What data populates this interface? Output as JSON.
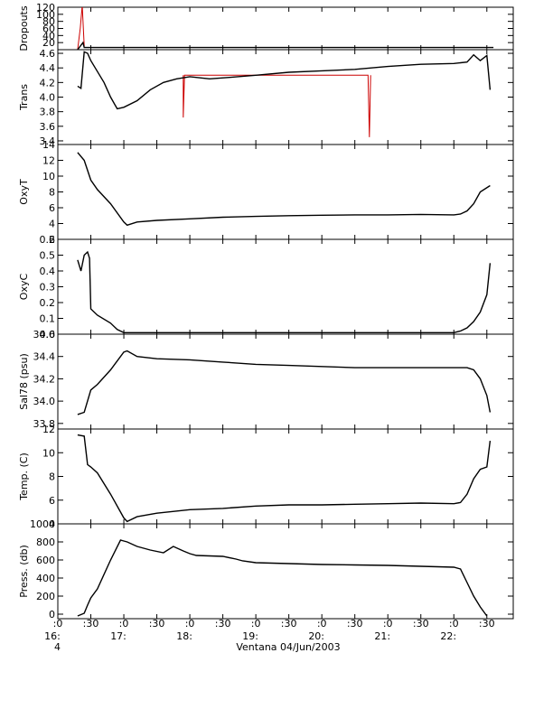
{
  "figure": {
    "corner_label": "4",
    "x_title": "Ventana 04/Jun/2003",
    "x_axis": {
      "range": [
        16.0,
        22.9
      ],
      "ticks": [
        16.0,
        16.5,
        17.0,
        17.5,
        18.0,
        18.5,
        19.0,
        19.5,
        20.0,
        20.5,
        21.0,
        21.5,
        22.0,
        22.5
      ],
      "tick_labels_top": [
        ":0",
        ":30",
        ":0",
        ":30",
        ":0",
        ":30",
        ":0",
        ":30",
        ":0",
        ":30",
        ":0",
        ":30",
        ":0",
        ":30"
      ],
      "tick_labels_bottom": [
        "16:",
        "",
        "17:",
        "",
        "18:",
        "",
        "19:",
        "",
        "20:",
        "",
        "21:",
        "",
        "22:",
        ""
      ]
    },
    "colors": {
      "primary": "#000000",
      "secondary": "#cc0000"
    }
  },
  "chart_data": [
    {
      "type": "line",
      "ylabel": "Dropouts",
      "ylim": [
        0,
        120
      ],
      "yticks": [
        20,
        40,
        60,
        80,
        100,
        120
      ],
      "series": [
        {
          "x": [
            16.3,
            16.38,
            16.4,
            22.6
          ],
          "y": [
            0,
            20,
            6,
            6
          ]
        }
      ],
      "red_series": [
        {
          "x": [
            16.3,
            16.34,
            16.37,
            16.4
          ],
          "y": [
            0,
            60,
            125,
            10
          ]
        }
      ]
    },
    {
      "type": "line",
      "ylabel": "Trans",
      "ylim": [
        3.35,
        4.65
      ],
      "yticks": [
        3.4,
        3.6,
        3.8,
        4.0,
        4.2,
        4.4,
        4.6
      ],
      "series": [
        {
          "x": [
            16.3,
            16.35,
            16.4,
            16.45,
            16.5,
            16.6,
            16.7,
            16.8,
            16.9,
            17.0,
            17.2,
            17.4,
            17.6,
            17.8,
            18.0,
            18.3,
            18.6,
            19.0,
            19.5,
            20.0,
            20.5,
            21.0,
            21.5,
            22.0,
            22.1,
            22.2,
            22.3,
            22.4,
            22.5,
            22.55
          ],
          "y": [
            4.15,
            4.12,
            4.62,
            4.6,
            4.5,
            4.35,
            4.2,
            4.0,
            3.84,
            3.86,
            3.95,
            4.1,
            4.2,
            4.25,
            4.28,
            4.25,
            4.27,
            4.3,
            4.34,
            4.36,
            4.38,
            4.42,
            4.45,
            4.46,
            4.47,
            4.48,
            4.58,
            4.5,
            4.57,
            4.1
          ]
        }
      ],
      "red_series": [
        {
          "x": [
            17.9,
            17.9,
            17.92,
            20.7,
            20.72,
            20.74
          ],
          "y": [
            4.3,
            3.72,
            4.3,
            4.3,
            3.45,
            4.3
          ]
        }
      ]
    },
    {
      "type": "line",
      "ylabel": "OxyT",
      "ylim": [
        2,
        14
      ],
      "yticks": [
        2,
        4,
        6,
        8,
        10,
        12,
        14
      ],
      "series": [
        {
          "x": [
            16.3,
            16.4,
            16.5,
            16.6,
            16.8,
            17.0,
            17.05,
            17.2,
            17.5,
            18.0,
            18.5,
            19.0,
            19.5,
            20.0,
            20.5,
            21.0,
            21.5,
            22.0,
            22.1,
            22.2,
            22.3,
            22.4,
            22.55
          ],
          "y": [
            13,
            12,
            9.5,
            8.3,
            6.5,
            4.2,
            3.8,
            4.2,
            4.4,
            4.6,
            4.8,
            4.9,
            5.0,
            5.05,
            5.1,
            5.1,
            5.15,
            5.1,
            5.2,
            5.6,
            6.5,
            8.0,
            8.8
          ]
        }
      ]
    },
    {
      "type": "line",
      "ylabel": "OxyC",
      "ylim": [
        0,
        0.6
      ],
      "yticks": [
        0.0,
        0.1,
        0.2,
        0.3,
        0.4,
        0.5,
        0.6
      ],
      "series": [
        {
          "x": [
            16.3,
            16.35,
            16.4,
            16.45,
            16.48,
            16.5,
            16.6,
            16.8,
            16.9,
            17.0,
            17.5,
            18.0,
            19.0,
            20.0,
            21.0,
            22.0,
            22.1,
            22.2,
            22.3,
            22.4,
            22.5,
            22.55
          ],
          "y": [
            0.47,
            0.4,
            0.5,
            0.52,
            0.48,
            0.16,
            0.12,
            0.07,
            0.03,
            0.01,
            0.01,
            0.01,
            0.01,
            0.01,
            0.01,
            0.01,
            0.02,
            0.04,
            0.08,
            0.14,
            0.25,
            0.45
          ]
        }
      ]
    },
    {
      "type": "line",
      "ylabel": "Sal78 (psu)",
      "ylim": [
        33.75,
        34.6
      ],
      "yticks": [
        33.8,
        34.0,
        34.2,
        34.4,
        34.6
      ],
      "series": [
        {
          "x": [
            16.3,
            16.4,
            16.5,
            16.6,
            16.8,
            17.0,
            17.05,
            17.2,
            17.5,
            18.0,
            18.5,
            19.0,
            19.5,
            20.0,
            20.5,
            21.0,
            21.5,
            22.0,
            22.2,
            22.3,
            22.4,
            22.5,
            22.55
          ],
          "y": [
            33.88,
            33.9,
            34.1,
            34.15,
            34.28,
            34.44,
            34.45,
            34.4,
            34.38,
            34.37,
            34.35,
            34.33,
            34.32,
            34.31,
            34.3,
            34.3,
            34.3,
            34.3,
            34.3,
            34.28,
            34.2,
            34.05,
            33.9
          ]
        }
      ]
    },
    {
      "type": "line",
      "ylabel": "Temp. (C)",
      "ylim": [
        4,
        12
      ],
      "yticks": [
        4,
        6,
        8,
        10,
        12
      ],
      "series": [
        {
          "x": [
            16.3,
            16.4,
            16.45,
            16.5,
            16.6,
            16.8,
            17.0,
            17.05,
            17.2,
            17.5,
            18.0,
            18.5,
            19.0,
            19.5,
            20.0,
            20.5,
            21.0,
            21.5,
            22.0,
            22.1,
            22.2,
            22.3,
            22.4,
            22.5,
            22.55
          ],
          "y": [
            11.5,
            11.4,
            9,
            8.8,
            8.3,
            6.5,
            4.5,
            4.2,
            4.6,
            4.9,
            5.2,
            5.3,
            5.5,
            5.6,
            5.6,
            5.65,
            5.7,
            5.75,
            5.7,
            5.8,
            6.5,
            7.8,
            8.6,
            8.8,
            11
          ]
        }
      ]
    },
    {
      "type": "line",
      "ylabel": "Press. (db)",
      "ylim": [
        -50,
        1000
      ],
      "yticks": [
        0,
        200,
        400,
        600,
        800,
        1000
      ],
      "series": [
        {
          "x": [
            16.3,
            16.4,
            16.45,
            16.5,
            16.6,
            16.8,
            16.95,
            17.0,
            17.05,
            17.2,
            17.4,
            17.6,
            17.75,
            17.9,
            18.0,
            18.1,
            18.5,
            18.7,
            18.8,
            19.0,
            19.5,
            20.0,
            20.5,
            21.0,
            21.5,
            22.0,
            22.1,
            22.2,
            22.3,
            22.4,
            22.5
          ],
          "y": [
            -20,
            10,
            100,
            180,
            280,
            600,
            820,
            810,
            800,
            750,
            710,
            680,
            750,
            700,
            670,
            650,
            640,
            610,
            590,
            570,
            560,
            550,
            545,
            540,
            530,
            520,
            500,
            350,
            200,
            80,
            -20
          ]
        }
      ]
    }
  ]
}
